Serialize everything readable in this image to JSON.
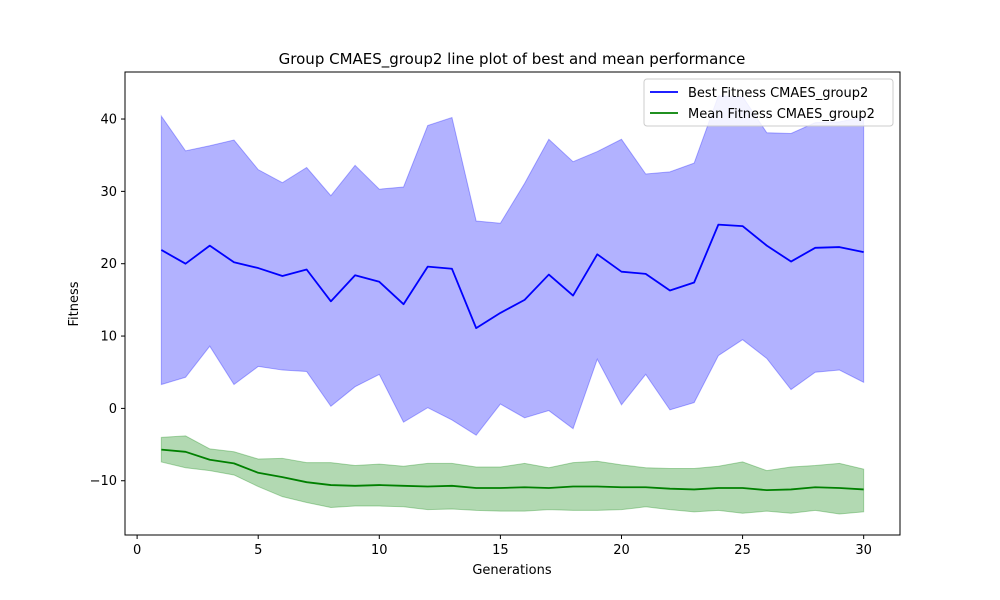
{
  "chart_data": {
    "type": "line",
    "title": "Group CMAES_group2 line plot of best and mean performance",
    "xlabel": "Generations",
    "ylabel": "Fitness",
    "xlim": [
      -0.5,
      31.5
    ],
    "ylim": [
      -17.5,
      46.5
    ],
    "xticks": [
      0,
      5,
      10,
      15,
      20,
      25,
      30
    ],
    "yticks": [
      -10,
      0,
      10,
      20,
      30,
      40
    ],
    "grid": false,
    "legend_position": "top-right",
    "x": [
      1,
      2,
      3,
      4,
      5,
      6,
      7,
      8,
      9,
      10,
      11,
      12,
      13,
      14,
      15,
      16,
      17,
      18,
      19,
      20,
      21,
      22,
      23,
      24,
      25,
      26,
      27,
      28,
      29,
      30
    ],
    "series": [
      {
        "name": "Best Fitness CMAES_group2",
        "color": "#0000ff",
        "band_color": "#0000ff",
        "values": [
          21.9,
          20.0,
          22.5,
          20.2,
          19.4,
          18.3,
          19.2,
          14.8,
          18.4,
          17.5,
          14.4,
          19.6,
          19.3,
          11.1,
          13.2,
          15.0,
          18.5,
          15.6,
          21.3,
          18.9,
          18.6,
          16.3,
          17.4,
          25.4,
          25.2,
          22.5,
          20.3,
          22.2,
          22.3,
          21.6
        ],
        "upper": [
          40.4,
          35.6,
          36.3,
          37.1,
          33.0,
          31.2,
          33.3,
          29.4,
          33.6,
          30.3,
          30.6,
          39.1,
          40.2,
          25.9,
          25.6,
          31.1,
          37.2,
          34.1,
          35.5,
          37.2,
          32.4,
          32.7,
          33.9,
          43.2,
          43.1,
          38.1,
          38.0,
          39.5,
          39.6,
          40.3
        ],
        "lower": [
          3.3,
          4.3,
          8.6,
          3.3,
          5.8,
          5.3,
          5.1,
          0.3,
          3.0,
          4.7,
          -1.9,
          0.1,
          -1.6,
          -3.7,
          0.6,
          -1.3,
          -0.3,
          -2.8,
          6.8,
          0.5,
          4.7,
          -0.2,
          0.8,
          7.3,
          9.5,
          6.9,
          2.6,
          5.0,
          5.3,
          3.6
        ]
      },
      {
        "name": "Mean Fitness CMAES_group2",
        "color": "#008000",
        "band_color": "#008000",
        "values": [
          -5.7,
          -6.0,
          -7.1,
          -7.6,
          -8.9,
          -9.5,
          -10.2,
          -10.6,
          -10.7,
          -10.6,
          -10.7,
          -10.8,
          -10.7,
          -11.0,
          -11.0,
          -10.9,
          -11.0,
          -10.8,
          -10.8,
          -10.9,
          -10.9,
          -11.1,
          -11.2,
          -11.0,
          -11.0,
          -11.3,
          -11.2,
          -10.9,
          -11.0,
          -11.2
        ],
        "upper": [
          -4.0,
          -3.8,
          -5.6,
          -6.0,
          -7.0,
          -6.9,
          -7.5,
          -7.5,
          -7.9,
          -7.7,
          -8.0,
          -7.6,
          -7.6,
          -8.1,
          -8.1,
          -7.6,
          -8.2,
          -7.5,
          -7.3,
          -7.8,
          -8.2,
          -8.3,
          -8.3,
          -8.0,
          -7.4,
          -8.6,
          -8.1,
          -7.9,
          -7.6,
          -8.4
        ],
        "lower": [
          -7.4,
          -8.2,
          -8.6,
          -9.2,
          -10.8,
          -12.2,
          -13.0,
          -13.7,
          -13.5,
          -13.5,
          -13.6,
          -14.0,
          -13.9,
          -14.1,
          -14.2,
          -14.2,
          -14.0,
          -14.1,
          -14.1,
          -14.0,
          -13.6,
          -14.0,
          -14.3,
          -14.1,
          -14.5,
          -14.2,
          -14.5,
          -14.1,
          -14.6,
          -14.3
        ]
      }
    ]
  }
}
